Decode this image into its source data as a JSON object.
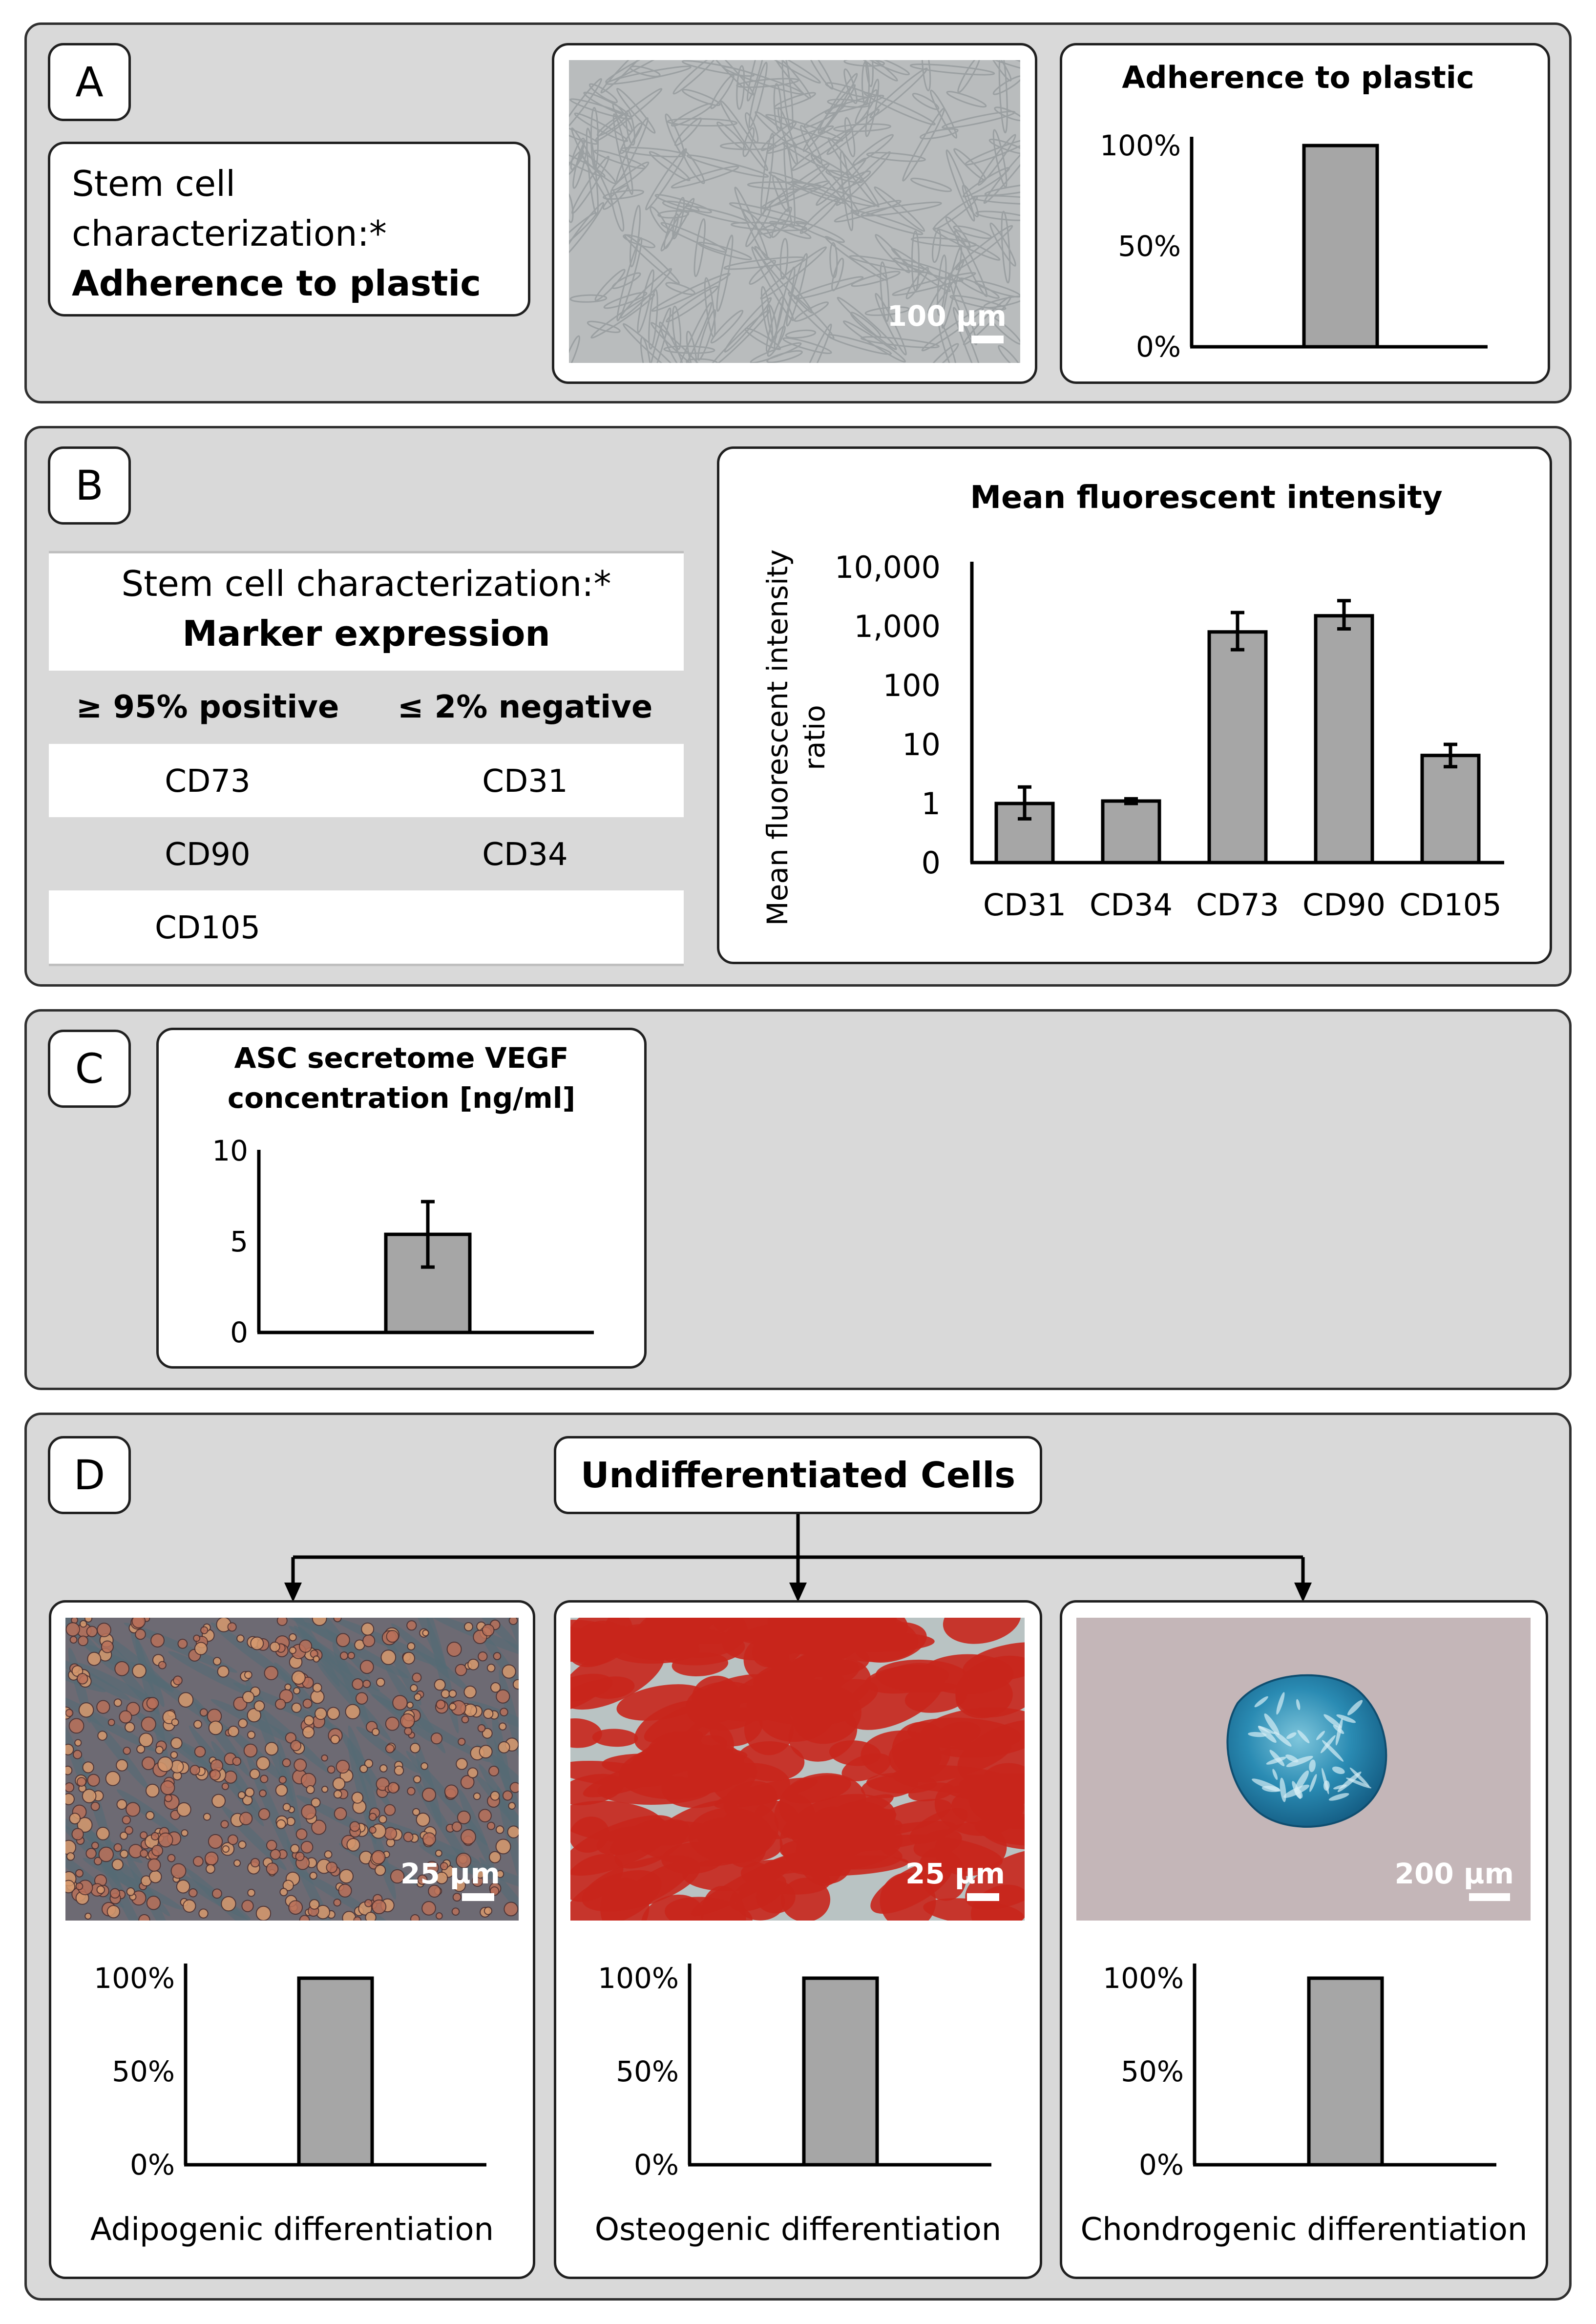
{
  "panels": {
    "a": {
      "letter": "A",
      "intro_line1": "Stem cell",
      "intro_line2": "characterization:*",
      "intro_bold": "Adherence to plastic",
      "scale_bar": "100 µm"
    },
    "b": {
      "letter": "B",
      "table": {
        "title": "Stem cell characterization:*",
        "subtitle": "Marker expression",
        "headers": [
          "≥ 95% positive",
          "≤ 2% negative"
        ],
        "rows": [
          [
            "CD73",
            "CD31"
          ],
          [
            "CD90",
            "CD34"
          ],
          [
            "CD105",
            ""
          ]
        ]
      }
    },
    "c": {
      "letter": "C"
    },
    "d": {
      "letter": "D",
      "root_label": "Undifferentiated Cells",
      "scale_bars": [
        "25 µm",
        "25 µm",
        "200 µm"
      ]
    }
  },
  "colors": {
    "panel_bg": "#d9d9d9",
    "bar_fill": "#a6a6a6",
    "stroke": "#000000",
    "alizarin_red": "#c8261c",
    "alcian_blue": "#1f7ea8"
  },
  "chart_data": [
    {
      "id": "adherence",
      "type": "bar",
      "title": "Adherence to plastic",
      "categories": [
        ""
      ],
      "values": [
        100
      ],
      "ylim": [
        0,
        100
      ],
      "yticks": [
        "0%",
        "50%",
        "100%"
      ]
    },
    {
      "id": "mfi",
      "type": "bar",
      "title": "Mean fluorescent intensity",
      "ylabel_line1": "Mean fluorescent intensity",
      "ylabel_line2": "ratio",
      "yscale": "log",
      "yticks": [
        "0",
        "1",
        "10",
        "100",
        "1,000",
        "10,000"
      ],
      "categories": [
        "CD31",
        "CD34",
        "CD73",
        "CD90",
        "CD105"
      ],
      "values": [
        1,
        1.1,
        800,
        1500,
        6.5
      ],
      "error_low": [
        0.55,
        1.0,
        400,
        900,
        4.2
      ],
      "error_high": [
        1.9,
        1.2,
        1700,
        2700,
        10
      ]
    },
    {
      "id": "vegf",
      "type": "bar",
      "title_line1": "ASC secretome VEGF",
      "title_line2": "concentration [ng/ml]",
      "categories": [
        ""
      ],
      "values": [
        5.4
      ],
      "error": [
        1.8
      ],
      "ylim": [
        0,
        10
      ],
      "yticks": [
        "0",
        "5",
        "10"
      ]
    },
    {
      "id": "adipo",
      "type": "bar",
      "xlabel": "Adipogenic differentiation",
      "categories": [
        ""
      ],
      "values": [
        100
      ],
      "ylim": [
        0,
        100
      ],
      "yticks": [
        "0%",
        "50%",
        "100%"
      ]
    },
    {
      "id": "osteo",
      "type": "bar",
      "xlabel": "Osteogenic differentiation",
      "categories": [
        ""
      ],
      "values": [
        100
      ],
      "ylim": [
        0,
        100
      ],
      "yticks": [
        "0%",
        "50%",
        "100%"
      ]
    },
    {
      "id": "chondro",
      "type": "bar",
      "xlabel": "Chondrogenic differentiation",
      "categories": [
        ""
      ],
      "values": [
        100
      ],
      "ylim": [
        0,
        100
      ],
      "yticks": [
        "0%",
        "50%",
        "100%"
      ]
    }
  ]
}
